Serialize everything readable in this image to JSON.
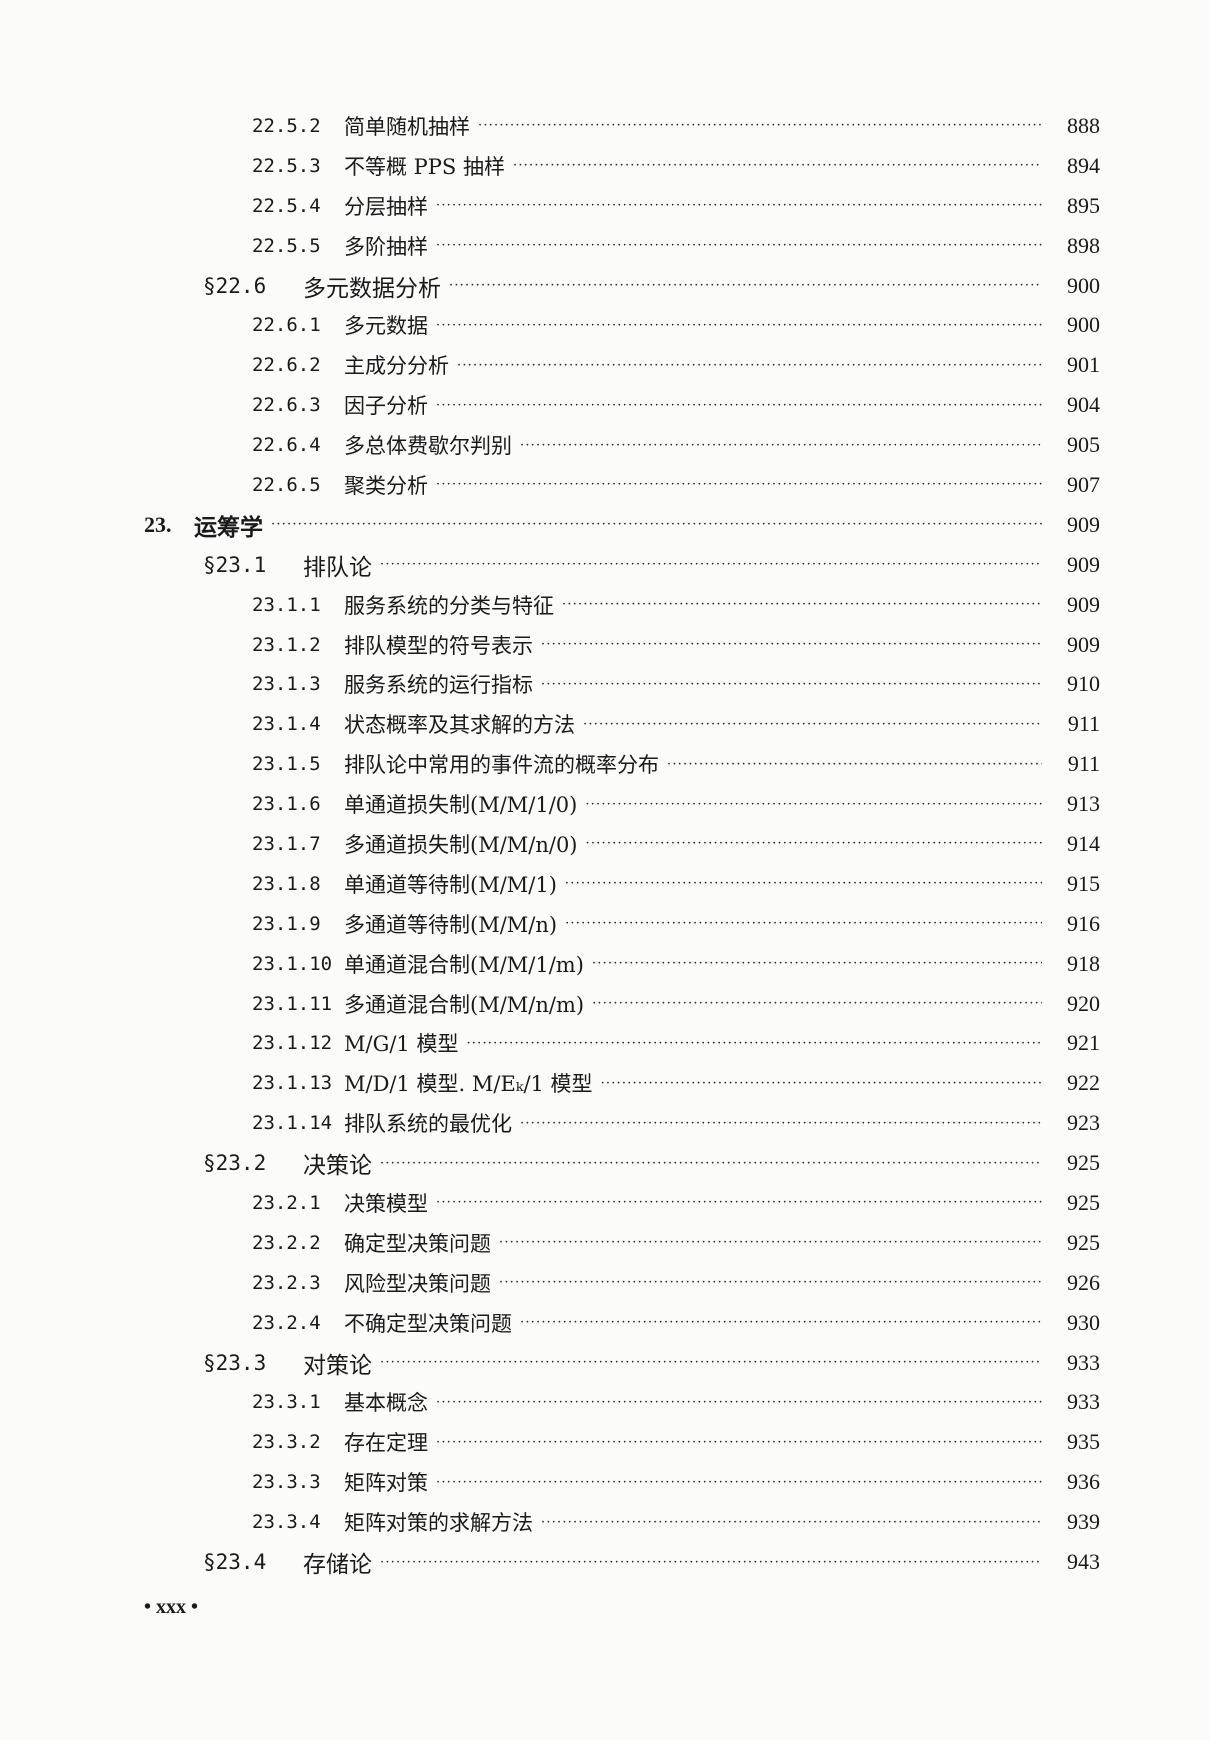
{
  "entries": [
    {
      "level": 3,
      "number": "22.5.2",
      "title": "简单随机抽样",
      "page": "888"
    },
    {
      "level": 3,
      "number": "22.5.3",
      "title": "不等概 PPS 抽样",
      "page": "894"
    },
    {
      "level": 3,
      "number": "22.5.4",
      "title": "分层抽样",
      "page": "895"
    },
    {
      "level": 3,
      "number": "22.5.5",
      "title": "多阶抽样",
      "page": "898"
    },
    {
      "level": 2,
      "number": "§22.6",
      "title": "多元数据分析",
      "page": "900"
    },
    {
      "level": 3,
      "number": "22.6.1",
      "title": "多元数据",
      "page": "900"
    },
    {
      "level": 3,
      "number": "22.6.2",
      "title": "主成分分析",
      "page": "901"
    },
    {
      "level": 3,
      "number": "22.6.3",
      "title": "因子分析",
      "page": "904"
    },
    {
      "level": 3,
      "number": "22.6.4",
      "title": "多总体费歇尔判别",
      "page": "905"
    },
    {
      "level": 3,
      "number": "22.6.5",
      "title": "聚类分析",
      "page": "907"
    },
    {
      "level": 1,
      "number": "23.",
      "title": "运筹学",
      "page": "909"
    },
    {
      "level": 2,
      "number": "§23.1",
      "title": "排队论",
      "page": "909"
    },
    {
      "level": 3,
      "number": "23.1.1",
      "title": "服务系统的分类与特征",
      "page": "909"
    },
    {
      "level": 3,
      "number": "23.1.2",
      "title": "排队模型的符号表示",
      "page": "909"
    },
    {
      "level": 3,
      "number": "23.1.3",
      "title": "服务系统的运行指标",
      "page": "910"
    },
    {
      "level": 3,
      "number": "23.1.4",
      "title": "状态概率及其求解的方法",
      "page": "911"
    },
    {
      "level": 3,
      "number": "23.1.5",
      "title": "排队论中常用的事件流的概率分布",
      "page": "911"
    },
    {
      "level": 3,
      "number": "23.1.6",
      "title": "单通道损失制(M/M/1/0)",
      "page": "913"
    },
    {
      "level": 3,
      "number": "23.1.7",
      "title": "多通道损失制(M/M/n/0)",
      "page": "914"
    },
    {
      "level": 3,
      "number": "23.1.8",
      "title": "单通道等待制(M/M/1)",
      "page": "915"
    },
    {
      "level": 3,
      "number": "23.1.9",
      "title": "多通道等待制(M/M/n)",
      "page": "916"
    },
    {
      "level": 3,
      "number": "23.1.10",
      "title": "单通道混合制(M/M/1/m)",
      "page": "918"
    },
    {
      "level": 3,
      "number": "23.1.11",
      "title": "多通道混合制(M/M/n/m)",
      "page": "920"
    },
    {
      "level": 3,
      "number": "23.1.12",
      "title": "M/G/1 模型",
      "page": "921"
    },
    {
      "level": 3,
      "number": "23.1.13",
      "title": "M/D/1 模型. M/Eₖ/1 模型",
      "page": "922"
    },
    {
      "level": 3,
      "number": "23.1.14",
      "title": "排队系统的最优化",
      "page": "923"
    },
    {
      "level": 2,
      "number": "§23.2",
      "title": "决策论",
      "page": "925"
    },
    {
      "level": 3,
      "number": "23.2.1",
      "title": "决策模型",
      "page": "925"
    },
    {
      "level": 3,
      "number": "23.2.2",
      "title": "确定型决策问题",
      "page": "925"
    },
    {
      "level": 3,
      "number": "23.2.3",
      "title": "风险型决策问题",
      "page": "926"
    },
    {
      "level": 3,
      "number": "23.2.4",
      "title": "不确定型决策问题",
      "page": "930"
    },
    {
      "level": 2,
      "number": "§23.3",
      "title": "对策论",
      "page": "933"
    },
    {
      "level": 3,
      "number": "23.3.1",
      "title": "基本概念",
      "page": "933"
    },
    {
      "level": 3,
      "number": "23.3.2",
      "title": "存在定理",
      "page": "935"
    },
    {
      "level": 3,
      "number": "23.3.3",
      "title": "矩阵对策",
      "page": "936"
    },
    {
      "level": 3,
      "number": "23.3.4",
      "title": "矩阵对策的求解方法",
      "page": "939"
    },
    {
      "level": 2,
      "number": "§23.4",
      "title": "存储论",
      "page": "943"
    }
  ],
  "footer": {
    "page_label": "• xxx •"
  }
}
